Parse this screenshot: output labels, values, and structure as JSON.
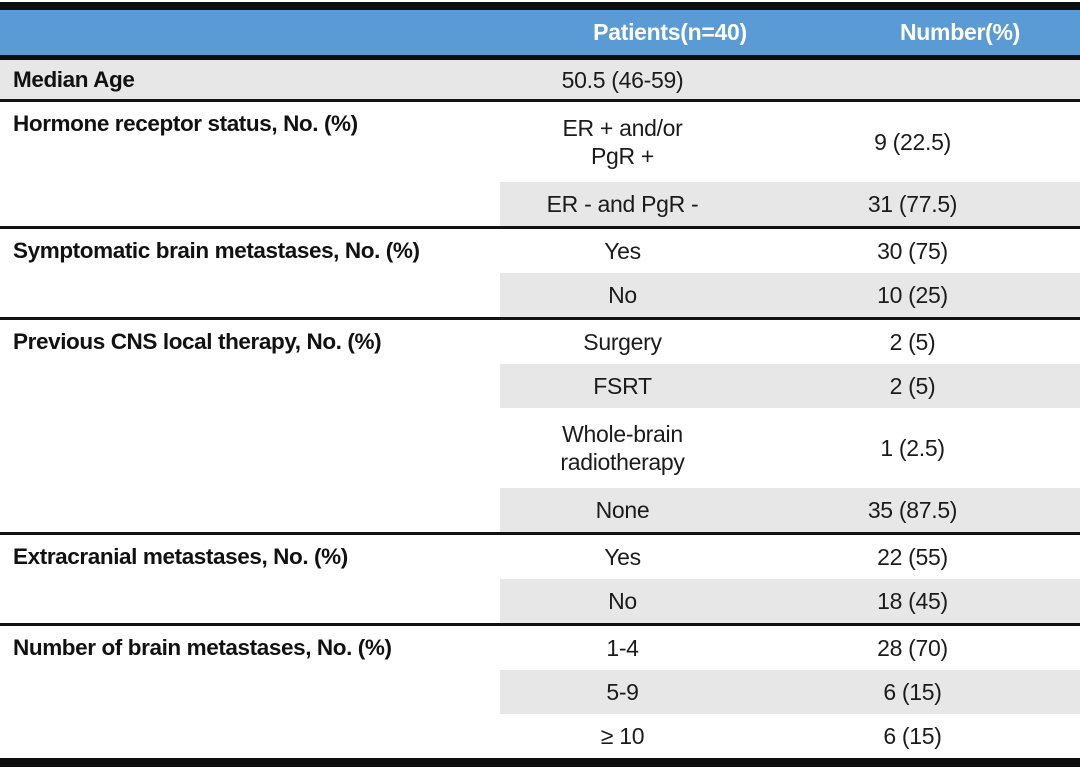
{
  "table": {
    "name": "patient-characteristics-table",
    "colors": {
      "header_bg": "#5B9BD5",
      "header_text": "#FFFFFF",
      "row_shade": "#E8E7E7",
      "rule": "#0D0D0D",
      "text": "#1B1B1B"
    },
    "header": {
      "col1": "",
      "col2": "Patients(n=40)",
      "col3": "Number(%)"
    },
    "sections": [
      {
        "label": "Median Age",
        "full_shade": true,
        "rows": [
          {
            "value": "50.5 (46-59)",
            "number": "",
            "shaded": true
          }
        ]
      },
      {
        "label": "Hormone receptor status, No. (%)",
        "full_shade": false,
        "rows": [
          {
            "value": "ER + and/or\nPgR +",
            "number": "9 (22.5)",
            "shaded": false
          },
          {
            "value": "ER - and PgR -",
            "number": "31 (77.5)",
            "shaded": true
          }
        ]
      },
      {
        "label": "Symptomatic brain metastases, No. (%)",
        "full_shade": false,
        "rows": [
          {
            "value": "Yes",
            "number": "30 (75)",
            "shaded": false
          },
          {
            "value": "No",
            "number": "10 (25)",
            "shaded": true
          }
        ]
      },
      {
        "label": "Previous CNS local therapy, No. (%)",
        "full_shade": false,
        "rows": [
          {
            "value": "Surgery",
            "number": "2 (5)",
            "shaded": false
          },
          {
            "value": "FSRT",
            "number": "2 (5)",
            "shaded": true
          },
          {
            "value": "Whole-brain\nradiotherapy",
            "number": "1 (2.5)",
            "shaded": false
          },
          {
            "value": "None",
            "number": "35 (87.5)",
            "shaded": true
          }
        ]
      },
      {
        "label": "Extracranial metastases, No. (%)",
        "full_shade": false,
        "rows": [
          {
            "value": "Yes",
            "number": "22 (55)",
            "shaded": false
          },
          {
            "value": "No",
            "number": "18 (45)",
            "shaded": true
          }
        ]
      },
      {
        "label": "Number of brain metastases, No. (%)",
        "full_shade": false,
        "rows": [
          {
            "value": "1-4",
            "number": "28 (70)",
            "shaded": false
          },
          {
            "value": "5-9",
            "number": "6 (15)",
            "shaded": true
          },
          {
            "value": "≥ 10",
            "number": "6 (15)",
            "shaded": false
          }
        ]
      }
    ]
  }
}
